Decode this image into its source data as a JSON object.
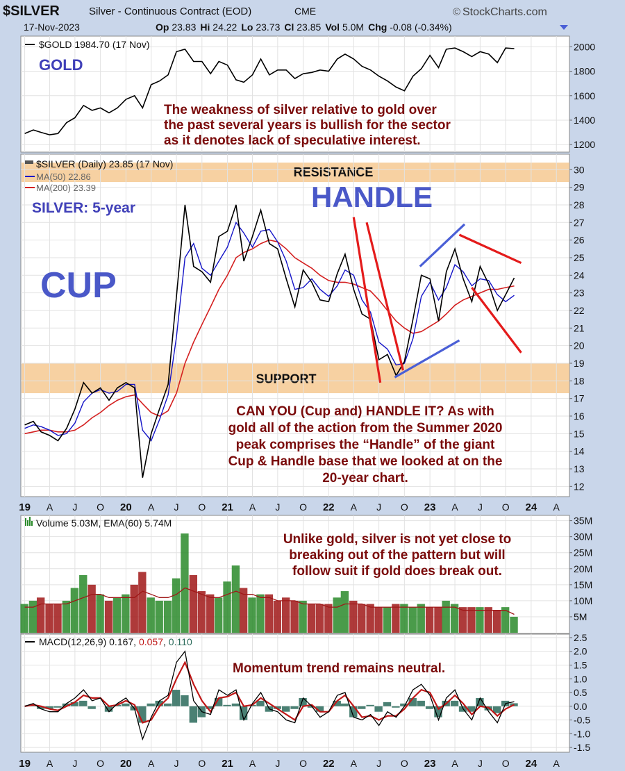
{
  "header": {
    "symbol": "$SILVER",
    "description": "Silver - Continuous Contract (EOD)",
    "exchange": "CME",
    "brand": "StockCharts.com",
    "date": "17-Nov-2023",
    "quote": {
      "op_label": "Op",
      "op": "23.83",
      "hi_label": "Hi",
      "hi": "24.22",
      "lo_label": "Lo",
      "lo": "23.73",
      "cl_label": "Cl",
      "cl": "23.85",
      "vol_label": "Vol",
      "vol": "5.0M",
      "chg_label": "Chg",
      "chg": "-0.08 (-0.34%)"
    }
  },
  "colors": {
    "background": "#c9d6ea",
    "panel": "#ffffff",
    "band": "#f5c58b",
    "price": "#000000",
    "ma50": "#1515c8",
    "ma200": "#d42020",
    "trendline_red": "#e41b1b",
    "trendline_blue": "#4a5fd6",
    "annotation_red": "#7a0a0a",
    "annotation_blue": "#4040b8",
    "volume_up": "#2a8a2a",
    "volume_down": "#a01818",
    "macd_hist": "#2a6a5a"
  },
  "chart_data": [
    {
      "id": "gold",
      "type": "line",
      "legend": "$GOLD 1984.70 (17 Nov)",
      "label": "GOLD",
      "x": [
        "2019-01",
        "2019-02",
        "2019-03",
        "2019-04",
        "2019-05",
        "2019-06",
        "2019-07",
        "2019-08",
        "2019-09",
        "2019-10",
        "2019-11",
        "2019-12",
        "2020-01",
        "2020-02",
        "2020-03",
        "2020-04",
        "2020-05",
        "2020-06",
        "2020-07",
        "2020-08",
        "2020-09",
        "2020-10",
        "2020-11",
        "2020-12",
        "2021-01",
        "2021-02",
        "2021-03",
        "2021-04",
        "2021-05",
        "2021-06",
        "2021-07",
        "2021-08",
        "2021-09",
        "2021-10",
        "2021-11",
        "2021-12",
        "2022-01",
        "2022-02",
        "2022-03",
        "2022-04",
        "2022-05",
        "2022-06",
        "2022-07",
        "2022-08",
        "2022-09",
        "2022-10",
        "2022-11",
        "2022-12",
        "2023-01",
        "2023-02",
        "2023-03",
        "2023-04",
        "2023-05",
        "2023-06",
        "2023-07",
        "2023-08",
        "2023-09",
        "2023-10",
        "2023-11"
      ],
      "values": [
        1290,
        1320,
        1300,
        1280,
        1290,
        1380,
        1420,
        1520,
        1480,
        1500,
        1460,
        1500,
        1570,
        1600,
        1500,
        1690,
        1720,
        1770,
        1960,
        1980,
        1880,
        1880,
        1780,
        1880,
        1850,
        1730,
        1710,
        1770,
        1900,
        1770,
        1810,
        1810,
        1740,
        1780,
        1790,
        1810,
        1800,
        1900,
        1940,
        1900,
        1840,
        1810,
        1760,
        1720,
        1670,
        1640,
        1760,
        1820,
        1930,
        1830,
        1980,
        1990,
        1960,
        1920,
        1960,
        1940,
        1870,
        1990,
        1985
      ],
      "ylim": [
        1150,
        2070
      ],
      "yticks": [
        1200,
        1400,
        1600,
        1800,
        2000
      ]
    },
    {
      "id": "silver",
      "type": "line",
      "legend": "$SILVER (Daily) 23.85 (17 Nov)",
      "ma50_label": "MA(50) 22.86",
      "ma200_label": "MA(200) 23.39",
      "x": [
        "2019-01",
        "2019-02",
        "2019-03",
        "2019-04",
        "2019-05",
        "2019-06",
        "2019-07",
        "2019-08",
        "2019-09",
        "2019-10",
        "2019-11",
        "2019-12",
        "2020-01",
        "2020-02",
        "2020-03",
        "2020-04",
        "2020-05",
        "2020-06",
        "2020-07",
        "2020-08",
        "2020-09",
        "2020-10",
        "2020-11",
        "2020-12",
        "2021-01",
        "2021-02",
        "2021-03",
        "2021-04",
        "2021-05",
        "2021-06",
        "2021-07",
        "2021-08",
        "2021-09",
        "2021-10",
        "2021-11",
        "2021-12",
        "2022-01",
        "2022-02",
        "2022-03",
        "2022-04",
        "2022-05",
        "2022-06",
        "2022-07",
        "2022-08",
        "2022-09",
        "2022-10",
        "2022-11",
        "2022-12",
        "2023-01",
        "2023-02",
        "2023-03",
        "2023-04",
        "2023-05",
        "2023-06",
        "2023-07",
        "2023-08",
        "2023-09",
        "2023-10",
        "2023-11"
      ],
      "values": [
        15.5,
        15.7,
        15.1,
        14.9,
        14.6,
        15.3,
        16.4,
        17.9,
        17.3,
        17.6,
        16.9,
        17.6,
        17.9,
        17.6,
        12.5,
        15.0,
        16.4,
        17.8,
        22.8,
        28.0,
        24.5,
        24.2,
        23.6,
        26.2,
        26.5,
        28.0,
        24.8,
        26.2,
        27.7,
        25.8,
        25.5,
        23.8,
        22.2,
        24.3,
        23.6,
        22.6,
        22.5,
        24.1,
        25.2,
        23.2,
        21.8,
        21.5,
        19.2,
        19.5,
        18.3,
        19.1,
        21.5,
        24.0,
        23.8,
        21.4,
        24.2,
        25.5,
        23.8,
        22.5,
        24.5,
        23.5,
        22.0,
        22.9,
        23.85
      ],
      "ma50": [
        15.3,
        15.5,
        15.4,
        15.2,
        14.9,
        15.0,
        15.6,
        16.8,
        17.3,
        17.5,
        17.3,
        17.4,
        17.8,
        17.8,
        15.2,
        14.6,
        15.8,
        17.2,
        20.5,
        25.0,
        25.8,
        24.4,
        24.0,
        24.8,
        25.6,
        27.0,
        26.4,
        25.6,
        26.5,
        26.6,
        25.9,
        24.8,
        23.2,
        23.3,
        23.8,
        23.2,
        22.8,
        23.4,
        24.3,
        24.0,
        22.6,
        21.9,
        20.2,
        19.8,
        18.9,
        19.0,
        20.4,
        22.8,
        23.6,
        22.6,
        23.3,
        24.6,
        24.2,
        23.4,
        23.8,
        23.7,
        22.9,
        22.5,
        22.86
      ],
      "ma200": [
        15.0,
        15.1,
        15.2,
        15.2,
        15.1,
        15.1,
        15.2,
        15.5,
        15.9,
        16.2,
        16.6,
        16.9,
        17.1,
        17.2,
        16.7,
        16.2,
        16.0,
        16.3,
        17.3,
        19.0,
        20.2,
        21.2,
        22.2,
        23.2,
        24.0,
        25.0,
        25.3,
        25.5,
        25.8,
        26.0,
        25.9,
        25.5,
        25.0,
        24.7,
        24.4,
        24.0,
        23.7,
        23.6,
        23.6,
        23.5,
        23.3,
        23.1,
        22.6,
        22.0,
        21.4,
        21.0,
        20.7,
        20.8,
        21.1,
        21.4,
        21.8,
        22.3,
        22.6,
        22.8,
        23.0,
        23.2,
        23.2,
        23.3,
        23.39
      ],
      "ylim": [
        11.5,
        30.8
      ],
      "yticks": [
        12,
        13,
        14,
        15,
        16,
        17,
        18,
        19,
        20,
        21,
        22,
        23,
        24,
        25,
        26,
        27,
        28,
        29,
        30
      ],
      "xticks": [
        {
          "label": "19",
          "date": "2019-01",
          "bold": true
        },
        {
          "label": "A",
          "date": "2019-04"
        },
        {
          "label": "J",
          "date": "2019-07"
        },
        {
          "label": "O",
          "date": "2019-10"
        },
        {
          "label": "20",
          "date": "2020-01",
          "bold": true
        },
        {
          "label": "A",
          "date": "2020-04"
        },
        {
          "label": "J",
          "date": "2020-07"
        },
        {
          "label": "O",
          "date": "2020-10"
        },
        {
          "label": "21",
          "date": "2021-01",
          "bold": true
        },
        {
          "label": "A",
          "date": "2021-04"
        },
        {
          "label": "J",
          "date": "2021-07"
        },
        {
          "label": "O",
          "date": "2021-10"
        },
        {
          "label": "22",
          "date": "2022-01",
          "bold": true
        },
        {
          "label": "A",
          "date": "2022-04"
        },
        {
          "label": "J",
          "date": "2022-07"
        },
        {
          "label": "O",
          "date": "2022-10"
        },
        {
          "label": "23",
          "date": "2023-01",
          "bold": true
        },
        {
          "label": "A",
          "date": "2023-04"
        },
        {
          "label": "J",
          "date": "2023-07"
        },
        {
          "label": "O",
          "date": "2023-10"
        },
        {
          "label": "24",
          "date": "2024-01",
          "bold": true
        },
        {
          "label": "A",
          "date": "2024-04"
        }
      ],
      "bands": [
        {
          "label": "RESISTANCE",
          "from": 29.3,
          "to": 30.4
        },
        {
          "label": "SUPPORT",
          "from": 17.3,
          "to": 19.0
        }
      ],
      "trendlines": [
        {
          "color": "red",
          "points": [
            [
              "2022-04-15",
              27.3
            ],
            [
              "2022-07-20",
              17.9
            ]
          ]
        },
        {
          "color": "red",
          "points": [
            [
              "2022-06-01",
              27.0
            ],
            [
              "2022-10-10",
              18.6
            ]
          ]
        },
        {
          "color": "blue",
          "points": [
            [
              "2022-09-10",
              18.2
            ],
            [
              "2023-05-01",
              20.3
            ]
          ]
        },
        {
          "color": "blue",
          "points": [
            [
              "2022-12-10",
              24.5
            ],
            [
              "2023-05-20",
              26.9
            ]
          ]
        },
        {
          "color": "red",
          "points": [
            [
              "2023-05-01",
              26.3
            ],
            [
              "2023-12-10",
              24.7
            ]
          ]
        },
        {
          "color": "red",
          "points": [
            [
              "2023-06-15",
              23.3
            ],
            [
              "2023-12-10",
              19.6
            ]
          ]
        }
      ]
    },
    {
      "id": "volume",
      "type": "bar",
      "legend": "Volume 5.03M, EMA(60) 5.74M",
      "x": [
        "2019-01",
        "2019-02",
        "2019-03",
        "2019-04",
        "2019-05",
        "2019-06",
        "2019-07",
        "2019-08",
        "2019-09",
        "2019-10",
        "2019-11",
        "2019-12",
        "2020-01",
        "2020-02",
        "2020-03",
        "2020-04",
        "2020-05",
        "2020-06",
        "2020-07",
        "2020-08",
        "2020-09",
        "2020-10",
        "2020-11",
        "2020-12",
        "2021-01",
        "2021-02",
        "2021-03",
        "2021-04",
        "2021-05",
        "2021-06",
        "2021-07",
        "2021-08",
        "2021-09",
        "2021-10",
        "2021-11",
        "2021-12",
        "2022-01",
        "2022-02",
        "2022-03",
        "2022-04",
        "2022-05",
        "2022-06",
        "2022-07",
        "2022-08",
        "2022-09",
        "2022-10",
        "2022-11",
        "2022-12",
        "2023-01",
        "2023-02",
        "2023-03",
        "2023-04",
        "2023-05",
        "2023-06",
        "2023-07",
        "2023-08",
        "2023-09",
        "2023-10",
        "2023-11"
      ],
      "values": [
        9,
        10,
        11,
        9,
        9,
        10,
        14,
        18,
        15,
        12,
        10,
        11,
        12,
        15,
        19,
        11,
        10,
        10,
        17,
        31,
        18,
        13,
        12,
        11,
        16,
        21,
        14,
        11,
        12,
        12,
        10,
        11,
        10,
        10,
        9,
        9,
        9,
        11,
        13,
        10,
        9,
        9,
        8,
        8,
        9,
        9,
        8,
        9,
        8,
        8,
        10,
        9,
        8,
        8,
        8,
        8,
        7,
        8,
        5
      ],
      "ema": [
        8,
        8,
        9,
        9,
        9,
        9,
        10,
        11,
        12,
        12,
        11,
        11,
        11,
        11,
        13,
        12,
        11,
        11,
        12,
        14,
        13,
        12,
        11,
        11,
        12,
        13,
        12,
        12,
        11,
        11,
        10,
        10,
        10,
        9,
        9,
        9,
        8,
        8,
        9,
        9,
        9,
        8,
        8,
        8,
        8,
        8,
        8,
        8,
        8,
        8,
        8,
        8,
        7,
        7,
        7,
        7,
        7,
        7,
        5.74
      ],
      "ylim": [
        0,
        36
      ],
      "yticks": [
        {
          "value": 5,
          "label": "5M"
        },
        {
          "value": 10,
          "label": "10M"
        },
        {
          "value": 15,
          "label": "15M"
        },
        {
          "value": 20,
          "label": "20M"
        },
        {
          "value": 25,
          "label": "25M"
        },
        {
          "value": 30,
          "label": "30M"
        },
        {
          "value": 35,
          "label": "35M"
        }
      ]
    },
    {
      "id": "macd",
      "type": "line",
      "legend_prefix": "MACD(12,26,9) 0.167, ",
      "legend_signal": "0.057",
      "legend_sep": ", ",
      "legend_hist": "0.110",
      "x": [
        "2019-01",
        "2019-02",
        "2019-03",
        "2019-04",
        "2019-05",
        "2019-06",
        "2019-07",
        "2019-08",
        "2019-09",
        "2019-10",
        "2019-11",
        "2019-12",
        "2020-01",
        "2020-02",
        "2020-03",
        "2020-04",
        "2020-05",
        "2020-06",
        "2020-07",
        "2020-08",
        "2020-09",
        "2020-10",
        "2020-11",
        "2020-12",
        "2021-01",
        "2021-02",
        "2021-03",
        "2021-04",
        "2021-05",
        "2021-06",
        "2021-07",
        "2021-08",
        "2021-09",
        "2021-10",
        "2021-11",
        "2021-12",
        "2022-01",
        "2022-02",
        "2022-03",
        "2022-04",
        "2022-05",
        "2022-06",
        "2022-07",
        "2022-08",
        "2022-09",
        "2022-10",
        "2022-11",
        "2022-12",
        "2023-01",
        "2023-02",
        "2023-03",
        "2023-04",
        "2023-05",
        "2023-06",
        "2023-07",
        "2023-08",
        "2023-09",
        "2023-10",
        "2023-11"
      ],
      "macd": [
        0.0,
        0.1,
        -0.1,
        -0.2,
        -0.2,
        0.1,
        0.3,
        0.6,
        0.2,
        0.3,
        -0.2,
        0.1,
        0.3,
        -0.1,
        -1.2,
        -0.4,
        0.2,
        0.4,
        1.6,
        2.0,
        0.2,
        -0.2,
        -0.3,
        0.6,
        0.4,
        0.6,
        -0.5,
        0.1,
        0.5,
        -0.1,
        -0.2,
        -0.5,
        -0.6,
        0.3,
        0.0,
        -0.4,
        -0.2,
        0.4,
        0.5,
        -0.4,
        -0.5,
        -0.3,
        -0.7,
        -0.2,
        -0.4,
        0.0,
        0.6,
        0.8,
        0.4,
        -0.5,
        0.3,
        0.6,
        -0.1,
        -0.5,
        0.3,
        -0.2,
        -0.6,
        0.1,
        0.167
      ],
      "signal": [
        0.0,
        0.05,
        0.0,
        -0.1,
        -0.15,
        0.0,
        0.15,
        0.4,
        0.3,
        0.3,
        0.0,
        0.05,
        0.2,
        0.05,
        -0.6,
        -0.5,
        0.0,
        0.3,
        1.0,
        1.6,
        0.8,
        0.2,
        -0.2,
        0.3,
        0.35,
        0.5,
        0.0,
        0.05,
        0.3,
        0.1,
        -0.1,
        -0.3,
        -0.5,
        0.0,
        0.05,
        -0.2,
        -0.2,
        0.2,
        0.4,
        0.0,
        -0.4,
        -0.35,
        -0.5,
        -0.35,
        -0.35,
        -0.1,
        0.3,
        0.6,
        0.5,
        -0.1,
        0.1,
        0.4,
        0.1,
        -0.3,
        0.0,
        -0.05,
        -0.35,
        -0.1,
        0.057
      ],
      "ylim": [
        -1.65,
        2.55
      ],
      "yticks": [
        {
          "value": -1.5,
          "label": "-1.5"
        },
        {
          "value": -1.0,
          "label": "-1.0"
        },
        {
          "value": -0.5,
          "label": "-0.5"
        },
        {
          "value": 0,
          "label": "0.0"
        },
        {
          "value": 0.5,
          "label": "0.5"
        },
        {
          "value": 1.0,
          "label": "1.0"
        },
        {
          "value": 1.5,
          "label": "1.5"
        },
        {
          "value": 2.0,
          "label": "2.0"
        },
        {
          "value": 2.5,
          "label": "2.5"
        }
      ]
    }
  ],
  "annotations": {
    "gold_comment": [
      "The weakness of silver relative to gold over",
      "the past several years is bullish for the sector",
      "as it denotes lack of speculative interest."
    ],
    "silver_title": "SILVER: 5-year",
    "cup": "CUP",
    "handle": "HANDLE",
    "cup_handle_comment": [
      "CAN YOU (Cup and) HANDLE IT? As with",
      "gold all of the action from the Summer 2020",
      "peak comprises the “Handle” of the giant",
      "Cup & Handle base that we looked at on the",
      "20-year chart."
    ],
    "volume_comment": [
      "Unlike gold, silver is not yet close to",
      "breaking out of the pattern but will",
      "follow suit if gold does break out."
    ],
    "macd_comment": "Momentum trend remains neutral."
  }
}
